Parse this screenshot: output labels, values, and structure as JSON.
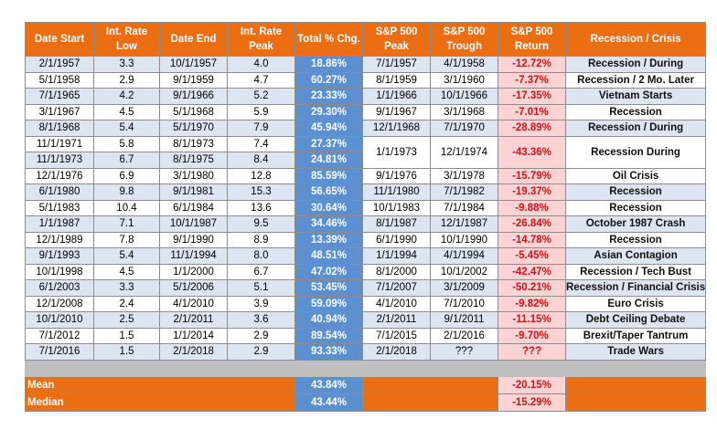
{
  "headers": [
    "Date Start",
    "Int. Rate\nLow",
    "Date End",
    "Int. Rate\nPeak",
    "Total % Chg.",
    "S&P 500\nPeak",
    "S&P 500\nTrough",
    "S&P 500\nReturn",
    "Recession / Crisis"
  ],
  "rows": [
    {
      "start": "2/1/1957",
      "low": "3.3",
      "end": "10/1/1957",
      "peak": "4.0",
      "total": "18.86%",
      "sp_peak": "7/1/1957",
      "sp_trough": "4/1/1958",
      "sp_return": "-12.72%",
      "crisis": "Recession / During"
    },
    {
      "start": "5/1/1958",
      "low": "2.9",
      "end": "9/1/1959",
      "peak": "4.7",
      "total": "60.27%",
      "sp_peak": "8/1/1959",
      "sp_trough": "3/1/1960",
      "sp_return": "-7.37%",
      "crisis": "Recession / 2 Mo. Later"
    },
    {
      "start": "7/1/1965",
      "low": "4.2",
      "end": "9/1/1966",
      "peak": "5.2",
      "total": "23.33%",
      "sp_peak": "1/1/1966",
      "sp_trough": "10/1/1966",
      "sp_return": "-17.35%",
      "crisis": "Vietnam Starts"
    },
    {
      "start": "3/1/1967",
      "low": "4.5",
      "end": "5/1/1968",
      "peak": "5.9",
      "total": "29.30%",
      "sp_peak": "9/1/1967",
      "sp_trough": "3/1/1968",
      "sp_return": "-7.01%",
      "crisis": "Recession"
    },
    {
      "start": "8/1/1968",
      "low": "5.4",
      "end": "5/1/1970",
      "peak": "7.9",
      "total": "45.94%",
      "sp_peak": "12/1/1968",
      "sp_trough": "7/1/1970",
      "sp_return": "-28.89%",
      "crisis": "Recession / During"
    },
    {
      "start": "11/1/1971",
      "low": "5.8",
      "end": "8/1/1973",
      "peak": "7.4",
      "total": "27.37%",
      "sp_peak": "1/1/1973",
      "sp_trough": "12/1/1974",
      "sp_return": "-43.36%",
      "crisis": "Recession During"
    },
    {
      "start": "11/1/1973",
      "low": "6.7",
      "end": "8/1/1975",
      "peak": "8.4",
      "total": "24.81%"
    },
    {
      "start": "12/1/1976",
      "low": "6.9",
      "end": "3/1/1980",
      "peak": "12.8",
      "total": "85.59%",
      "sp_peak": "9/1/1976",
      "sp_trough": "3/1/1978",
      "sp_return": "-15.79%",
      "crisis": "Oil Crisis"
    },
    {
      "start": "6/1/1980",
      "low": "9.8",
      "end": "9/1/1981",
      "peak": "15.3",
      "total": "56.65%",
      "sp_peak": "11/1/1980",
      "sp_trough": "7/1/1982",
      "sp_return": "-19.37%",
      "crisis": "Recession"
    },
    {
      "start": "5/1/1983",
      "low": "10.4",
      "end": "6/1/1984",
      "peak": "13.6",
      "total": "30.64%",
      "sp_peak": "10/1/1983",
      "sp_trough": "7/1/1984",
      "sp_return": "-9.88%",
      "crisis": "Recession"
    },
    {
      "start": "1/1/1987",
      "low": "7.1",
      "end": "10/1/1987",
      "peak": "9.5",
      "total": "34.46%",
      "sp_peak": "8/1/1987",
      "sp_trough": "12/1/1987",
      "sp_return": "-26.84%",
      "crisis": "October 1987 Crash"
    },
    {
      "start": "12/1/1989",
      "low": "7.8",
      "end": "9/1/1990",
      "peak": "8.9",
      "total": "13.39%",
      "sp_peak": "6/1/1990",
      "sp_trough": "10/1/1990",
      "sp_return": "-14.78%",
      "crisis": "Recession"
    },
    {
      "start": "9/1/1993",
      "low": "5.4",
      "end": "11/1/1994",
      "peak": "8.0",
      "total": "48.51%",
      "sp_peak": "1/1/1994",
      "sp_trough": "4/1/1994",
      "sp_return": "-5.45%",
      "crisis": "Asian Contagion"
    },
    {
      "start": "10/1/1998",
      "low": "4.5",
      "end": "1/1/2000",
      "peak": "6.7",
      "total": "47.02%",
      "sp_peak": "8/1/2000",
      "sp_trough": "10/1/2002",
      "sp_return": "-42.47%",
      "crisis": "Recession / Tech Bust"
    },
    {
      "start": "6/1/2003",
      "low": "3.3",
      "end": "5/1/2006",
      "peak": "5.1",
      "total": "53.45%",
      "sp_peak": "7/1/2007",
      "sp_trough": "3/1/2009",
      "sp_return": "-50.21%",
      "crisis": "Recession / Financial Crisis"
    },
    {
      "start": "12/1/2008",
      "low": "2.4",
      "end": "4/1/2010",
      "peak": "3.9",
      "total": "59.09%",
      "sp_peak": "4/1/2010",
      "sp_trough": "7/1/2010",
      "sp_return": "-9.82%",
      "crisis": "Euro Crisis"
    },
    {
      "start": "10/1/2010",
      "low": "2.5",
      "end": "2/1/2011",
      "peak": "3.6",
      "total": "40.94%",
      "sp_peak": "2/1/2011",
      "sp_trough": "9/1/2011",
      "sp_return": "-11.15%",
      "crisis": "Debt Ceiling Debate"
    },
    {
      "start": "7/1/2012",
      "low": "1.5",
      "end": "1/1/2014",
      "peak": "2.9",
      "total": "89.54%",
      "sp_peak": "7/1/2015",
      "sp_trough": "2/1/2016",
      "sp_return": "-9.70%",
      "crisis": "Brexit/Taper Tantrum"
    },
    {
      "start": "7/1/2016",
      "low": "1.5",
      "end": "2/1/2018",
      "peak": "2.9",
      "total": "93.33%",
      "sp_peak": "2/1/2018",
      "sp_trough": "???",
      "sp_return": "???",
      "crisis": "Trade Wars"
    }
  ],
  "summary": [
    {
      "label": "Mean",
      "total": "43.84%",
      "sp_return": "-20.15%"
    },
    {
      "label": "Median",
      "total": "43.44%",
      "sp_return": "-15.29%"
    }
  ],
  "colors": {
    "header_orange": "#ec6e13",
    "total_blue": "#5b8fcf",
    "return_pink": "#fbd3d3",
    "return_red": "#d2111b",
    "row_stripe": "#dce5f2"
  }
}
